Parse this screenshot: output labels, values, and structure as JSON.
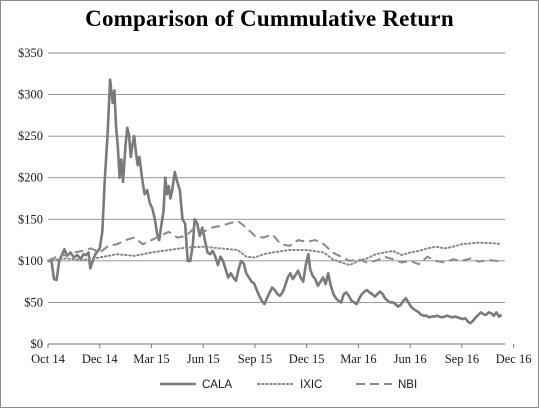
{
  "chart_data": {
    "type": "line",
    "title": "Comparison of Cummulative Return",
    "xlabel": "",
    "ylabel": "",
    "x_ticks": [
      "Oct 14",
      "Dec 14",
      "Mar 15",
      "Jun 15",
      "Sep 15",
      "Dec 15",
      "Mar 16",
      "Jun 16",
      "Sep 16",
      "Dec 16"
    ],
    "y_ticks": [
      "$0",
      "$50",
      "$100",
      "$150",
      "$200",
      "$250",
      "$300",
      "$350"
    ],
    "ylim": [
      0,
      350
    ],
    "xlim": [
      0,
      26.5
    ],
    "grid": "horizontal",
    "legend_position": "bottom",
    "series": [
      {
        "name": "CALA",
        "color": "#7a7a7a",
        "style": "solid",
        "points": [
          [
            0,
            100
          ],
          [
            0.2,
            100
          ],
          [
            0.35,
            78
          ],
          [
            0.5,
            77
          ],
          [
            0.65,
            100
          ],
          [
            0.8,
            107
          ],
          [
            0.95,
            114
          ],
          [
            1.1,
            106
          ],
          [
            1.3,
            110
          ],
          [
            1.5,
            104
          ],
          [
            1.7,
            107
          ],
          [
            1.9,
            102
          ],
          [
            2.05,
            108
          ],
          [
            2.2,
            107
          ],
          [
            2.35,
            110
          ],
          [
            2.45,
            91
          ],
          [
            2.6,
            100
          ],
          [
            2.75,
            108
          ],
          [
            3.0,
            115
          ],
          [
            3.15,
            135
          ],
          [
            3.3,
            200
          ],
          [
            3.45,
            250
          ],
          [
            3.6,
            318
          ],
          [
            3.75,
            290
          ],
          [
            3.85,
            305
          ],
          [
            3.95,
            260
          ],
          [
            4.05,
            238
          ],
          [
            4.15,
            200
          ],
          [
            4.25,
            222
          ],
          [
            4.35,
            195
          ],
          [
            4.5,
            240
          ],
          [
            4.6,
            260
          ],
          [
            4.7,
            250
          ],
          [
            4.8,
            225
          ],
          [
            4.9,
            240
          ],
          [
            5.0,
            250
          ],
          [
            5.1,
            230
          ],
          [
            5.2,
            215
          ],
          [
            5.3,
            225
          ],
          [
            5.45,
            200
          ],
          [
            5.6,
            180
          ],
          [
            5.75,
            185
          ],
          [
            5.9,
            170
          ],
          [
            6.05,
            163
          ],
          [
            6.2,
            150
          ],
          [
            6.35,
            130
          ],
          [
            6.45,
            125
          ],
          [
            6.55,
            140
          ],
          [
            6.7,
            160
          ],
          [
            6.8,
            200
          ],
          [
            6.9,
            180
          ],
          [
            7.0,
            190
          ],
          [
            7.1,
            175
          ],
          [
            7.2,
            185
          ],
          [
            7.35,
            207
          ],
          [
            7.5,
            195
          ],
          [
            7.65,
            185
          ],
          [
            7.8,
            150
          ],
          [
            7.95,
            145
          ],
          [
            8.1,
            100
          ],
          [
            8.25,
            100
          ],
          [
            8.4,
            120
          ],
          [
            8.5,
            150
          ],
          [
            8.65,
            145
          ],
          [
            8.8,
            130
          ],
          [
            8.95,
            140
          ],
          [
            9.1,
            125
          ],
          [
            9.25,
            110
          ],
          [
            9.4,
            108
          ],
          [
            9.55,
            112
          ],
          [
            9.7,
            105
          ],
          [
            9.85,
            95
          ],
          [
            10.0,
            105
          ],
          [
            10.15,
            100
          ],
          [
            10.3,
            90
          ],
          [
            10.45,
            80
          ],
          [
            10.6,
            85
          ],
          [
            10.75,
            80
          ],
          [
            10.9,
            76
          ],
          [
            11.05,
            90
          ],
          [
            11.2,
            100
          ],
          [
            11.35,
            97
          ],
          [
            11.5,
            85
          ],
          [
            11.65,
            80
          ],
          [
            11.8,
            75
          ],
          [
            11.95,
            73
          ],
          [
            12.1,
            65
          ],
          [
            12.25,
            58
          ],
          [
            12.4,
            52
          ],
          [
            12.55,
            48
          ],
          [
            12.7,
            55
          ],
          [
            12.85,
            62
          ],
          [
            13.0,
            68
          ],
          [
            13.15,
            65
          ],
          [
            13.3,
            60
          ],
          [
            13.45,
            58
          ],
          [
            13.6,
            62
          ],
          [
            13.75,
            70
          ],
          [
            13.9,
            80
          ],
          [
            14.05,
            85
          ],
          [
            14.2,
            78
          ],
          [
            14.35,
            83
          ],
          [
            14.5,
            88
          ],
          [
            14.65,
            80
          ],
          [
            14.8,
            75
          ],
          [
            14.95,
            95
          ],
          [
            15.1,
            108
          ],
          [
            15.2,
            90
          ],
          [
            15.35,
            82
          ],
          [
            15.5,
            78
          ],
          [
            15.65,
            70
          ],
          [
            15.8,
            75
          ],
          [
            15.95,
            80
          ],
          [
            16.1,
            72
          ],
          [
            16.25,
            85
          ],
          [
            16.4,
            70
          ],
          [
            16.55,
            60
          ],
          [
            16.7,
            55
          ],
          [
            16.85,
            52
          ],
          [
            17.0,
            50
          ],
          [
            17.15,
            60
          ],
          [
            17.3,
            62
          ],
          [
            17.45,
            58
          ],
          [
            17.6,
            52
          ],
          [
            17.75,
            50
          ],
          [
            17.9,
            48
          ],
          [
            18.05,
            55
          ],
          [
            18.2,
            60
          ],
          [
            18.35,
            63
          ],
          [
            18.5,
            65
          ],
          [
            18.65,
            62
          ],
          [
            18.8,
            60
          ],
          [
            18.95,
            57
          ],
          [
            19.1,
            60
          ],
          [
            19.25,
            63
          ],
          [
            19.4,
            60
          ],
          [
            19.55,
            55
          ],
          [
            19.7,
            52
          ],
          [
            19.85,
            50
          ],
          [
            20.0,
            50
          ],
          [
            20.15,
            48
          ],
          [
            20.3,
            45
          ],
          [
            20.45,
            47
          ],
          [
            20.6,
            52
          ],
          [
            20.75,
            55
          ],
          [
            20.9,
            50
          ],
          [
            21.05,
            45
          ],
          [
            21.2,
            42
          ],
          [
            21.35,
            40
          ],
          [
            21.5,
            38
          ],
          [
            21.65,
            35
          ],
          [
            21.8,
            34
          ],
          [
            21.95,
            34
          ],
          [
            22.1,
            32
          ],
          [
            22.25,
            33
          ],
          [
            22.4,
            33
          ],
          [
            22.55,
            34
          ],
          [
            22.7,
            33
          ],
          [
            22.85,
            32
          ],
          [
            23.0,
            33
          ],
          [
            23.15,
            34
          ],
          [
            23.3,
            33
          ],
          [
            23.45,
            32
          ],
          [
            23.6,
            33
          ],
          [
            23.75,
            32
          ],
          [
            23.9,
            31
          ],
          [
            24.05,
            30
          ],
          [
            24.2,
            31
          ],
          [
            24.35,
            27
          ],
          [
            24.5,
            25
          ],
          [
            24.65,
            28
          ],
          [
            24.8,
            32
          ],
          [
            24.95,
            35
          ],
          [
            25.1,
            38
          ],
          [
            25.25,
            36
          ],
          [
            25.4,
            35
          ],
          [
            25.55,
            38
          ],
          [
            25.7,
            37
          ],
          [
            25.85,
            34
          ],
          [
            26.0,
            38
          ],
          [
            26.15,
            33
          ],
          [
            26.3,
            35
          ]
        ]
      },
      {
        "name": "IXIC",
        "color": "#8a8a8a",
        "style": "dotted",
        "points": [
          [
            0,
            100
          ],
          [
            1,
            103
          ],
          [
            2,
            101
          ],
          [
            3,
            104
          ],
          [
            4,
            108
          ],
          [
            5,
            106
          ],
          [
            6,
            110
          ],
          [
            7,
            113
          ],
          [
            8,
            116
          ],
          [
            9,
            117
          ],
          [
            10,
            115
          ],
          [
            11,
            113
          ],
          [
            11.5,
            105
          ],
          [
            12,
            104
          ],
          [
            12.5,
            108
          ],
          [
            13,
            110
          ],
          [
            14,
            113
          ],
          [
            15,
            113
          ],
          [
            16,
            110
          ],
          [
            16.5,
            102
          ],
          [
            17,
            98
          ],
          [
            17.5,
            95
          ],
          [
            18,
            100
          ],
          [
            18.5,
            103
          ],
          [
            19,
            108
          ],
          [
            19.5,
            110
          ],
          [
            20,
            112
          ],
          [
            20.5,
            107
          ],
          [
            21,
            110
          ],
          [
            21.5,
            112
          ],
          [
            22,
            115
          ],
          [
            22.5,
            117
          ],
          [
            23,
            115
          ],
          [
            23.5,
            117
          ],
          [
            24,
            120
          ],
          [
            25,
            122
          ],
          [
            26,
            121
          ],
          [
            26.3,
            120
          ]
        ]
      },
      {
        "name": "NBI",
        "color": "#8a8a8a",
        "style": "dashed",
        "points": [
          [
            0,
            100
          ],
          [
            0.5,
            105
          ],
          [
            1,
            107
          ],
          [
            1.5,
            110
          ],
          [
            2,
            112
          ],
          [
            2.5,
            115
          ],
          [
            3,
            110
          ],
          [
            3.5,
            118
          ],
          [
            4,
            120
          ],
          [
            4.5,
            125
          ],
          [
            5,
            128
          ],
          [
            5.5,
            120
          ],
          [
            6,
            125
          ],
          [
            6.5,
            130
          ],
          [
            7,
            135
          ],
          [
            7.5,
            128
          ],
          [
            8,
            130
          ],
          [
            8.5,
            140
          ],
          [
            9,
            135
          ],
          [
            9.5,
            140
          ],
          [
            10,
            142
          ],
          [
            10.5,
            145
          ],
          [
            11,
            148
          ],
          [
            11.5,
            140
          ],
          [
            12,
            130
          ],
          [
            12.5,
            128
          ],
          [
            13,
            132
          ],
          [
            13.5,
            120
          ],
          [
            14,
            118
          ],
          [
            14.5,
            125
          ],
          [
            15,
            123
          ],
          [
            15.5,
            125
          ],
          [
            16,
            120
          ],
          [
            16.5,
            110
          ],
          [
            17,
            105
          ],
          [
            17.5,
            100
          ],
          [
            18,
            102
          ],
          [
            18.5,
            98
          ],
          [
            19,
            100
          ],
          [
            19.5,
            105
          ],
          [
            20,
            102
          ],
          [
            20.5,
            98
          ],
          [
            21,
            100
          ],
          [
            21.5,
            96
          ],
          [
            22,
            105
          ],
          [
            22.5,
            100
          ],
          [
            23,
            98
          ],
          [
            23.5,
            102
          ],
          [
            24,
            100
          ],
          [
            24.5,
            103
          ],
          [
            25,
            99
          ],
          [
            25.5,
            101
          ],
          [
            26,
            100
          ],
          [
            26.3,
            99
          ]
        ]
      }
    ]
  }
}
